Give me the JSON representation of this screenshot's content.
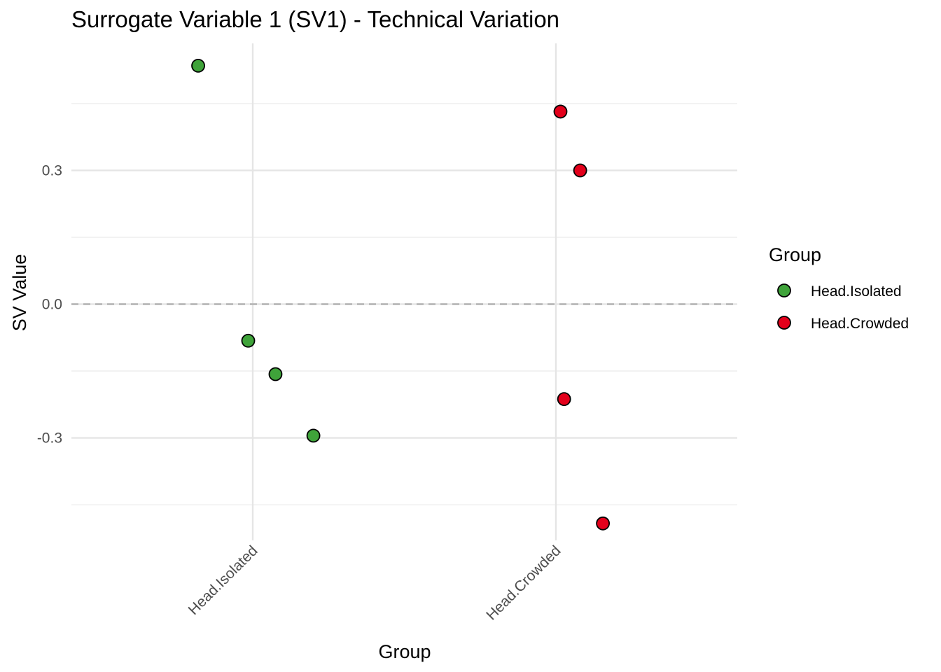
{
  "chart_data": {
    "type": "scatter",
    "title": "Surrogate Variable 1 (SV1) - Technical Variation",
    "xlabel": "Group",
    "ylabel": "SV Value",
    "categories": [
      "Head.Isolated",
      "Head.Crowded"
    ],
    "yticks": [
      "-0.3",
      "0.0",
      "0.3"
    ],
    "ytick_values": [
      -0.3,
      0.0,
      0.3
    ],
    "ylim": [
      -0.53,
      0.585
    ],
    "reference_line": {
      "y": 0.0,
      "style": "dashed",
      "color": "#b3b3b3"
    },
    "grid": true,
    "legend": {
      "title": "Group",
      "placement": "right",
      "entries": [
        {
          "label": "Head.Isolated",
          "color": "#3fa33a"
        },
        {
          "label": "Head.Crowded",
          "color": "#e3001b"
        }
      ]
    },
    "series": [
      {
        "name": "Head.Isolated",
        "color": "#3fa33a",
        "points": [
          {
            "category": "Head.Isolated",
            "jitter": -0.18,
            "y": 0.535
          },
          {
            "category": "Head.Isolated",
            "jitter": -0.015,
            "y": -0.082
          },
          {
            "category": "Head.Isolated",
            "jitter": 0.075,
            "y": -0.157
          },
          {
            "category": "Head.Isolated",
            "jitter": 0.2,
            "y": -0.295
          }
        ]
      },
      {
        "name": "Head.Crowded",
        "color": "#e3001b",
        "points": [
          {
            "category": "Head.Crowded",
            "jitter": 0.015,
            "y": 0.432
          },
          {
            "category": "Head.Crowded",
            "jitter": 0.08,
            "y": 0.3
          },
          {
            "category": "Head.Crowded",
            "jitter": 0.027,
            "y": -0.213
          },
          {
            "category": "Head.Crowded",
            "jitter": 0.155,
            "y": -0.492
          }
        ]
      }
    ]
  }
}
